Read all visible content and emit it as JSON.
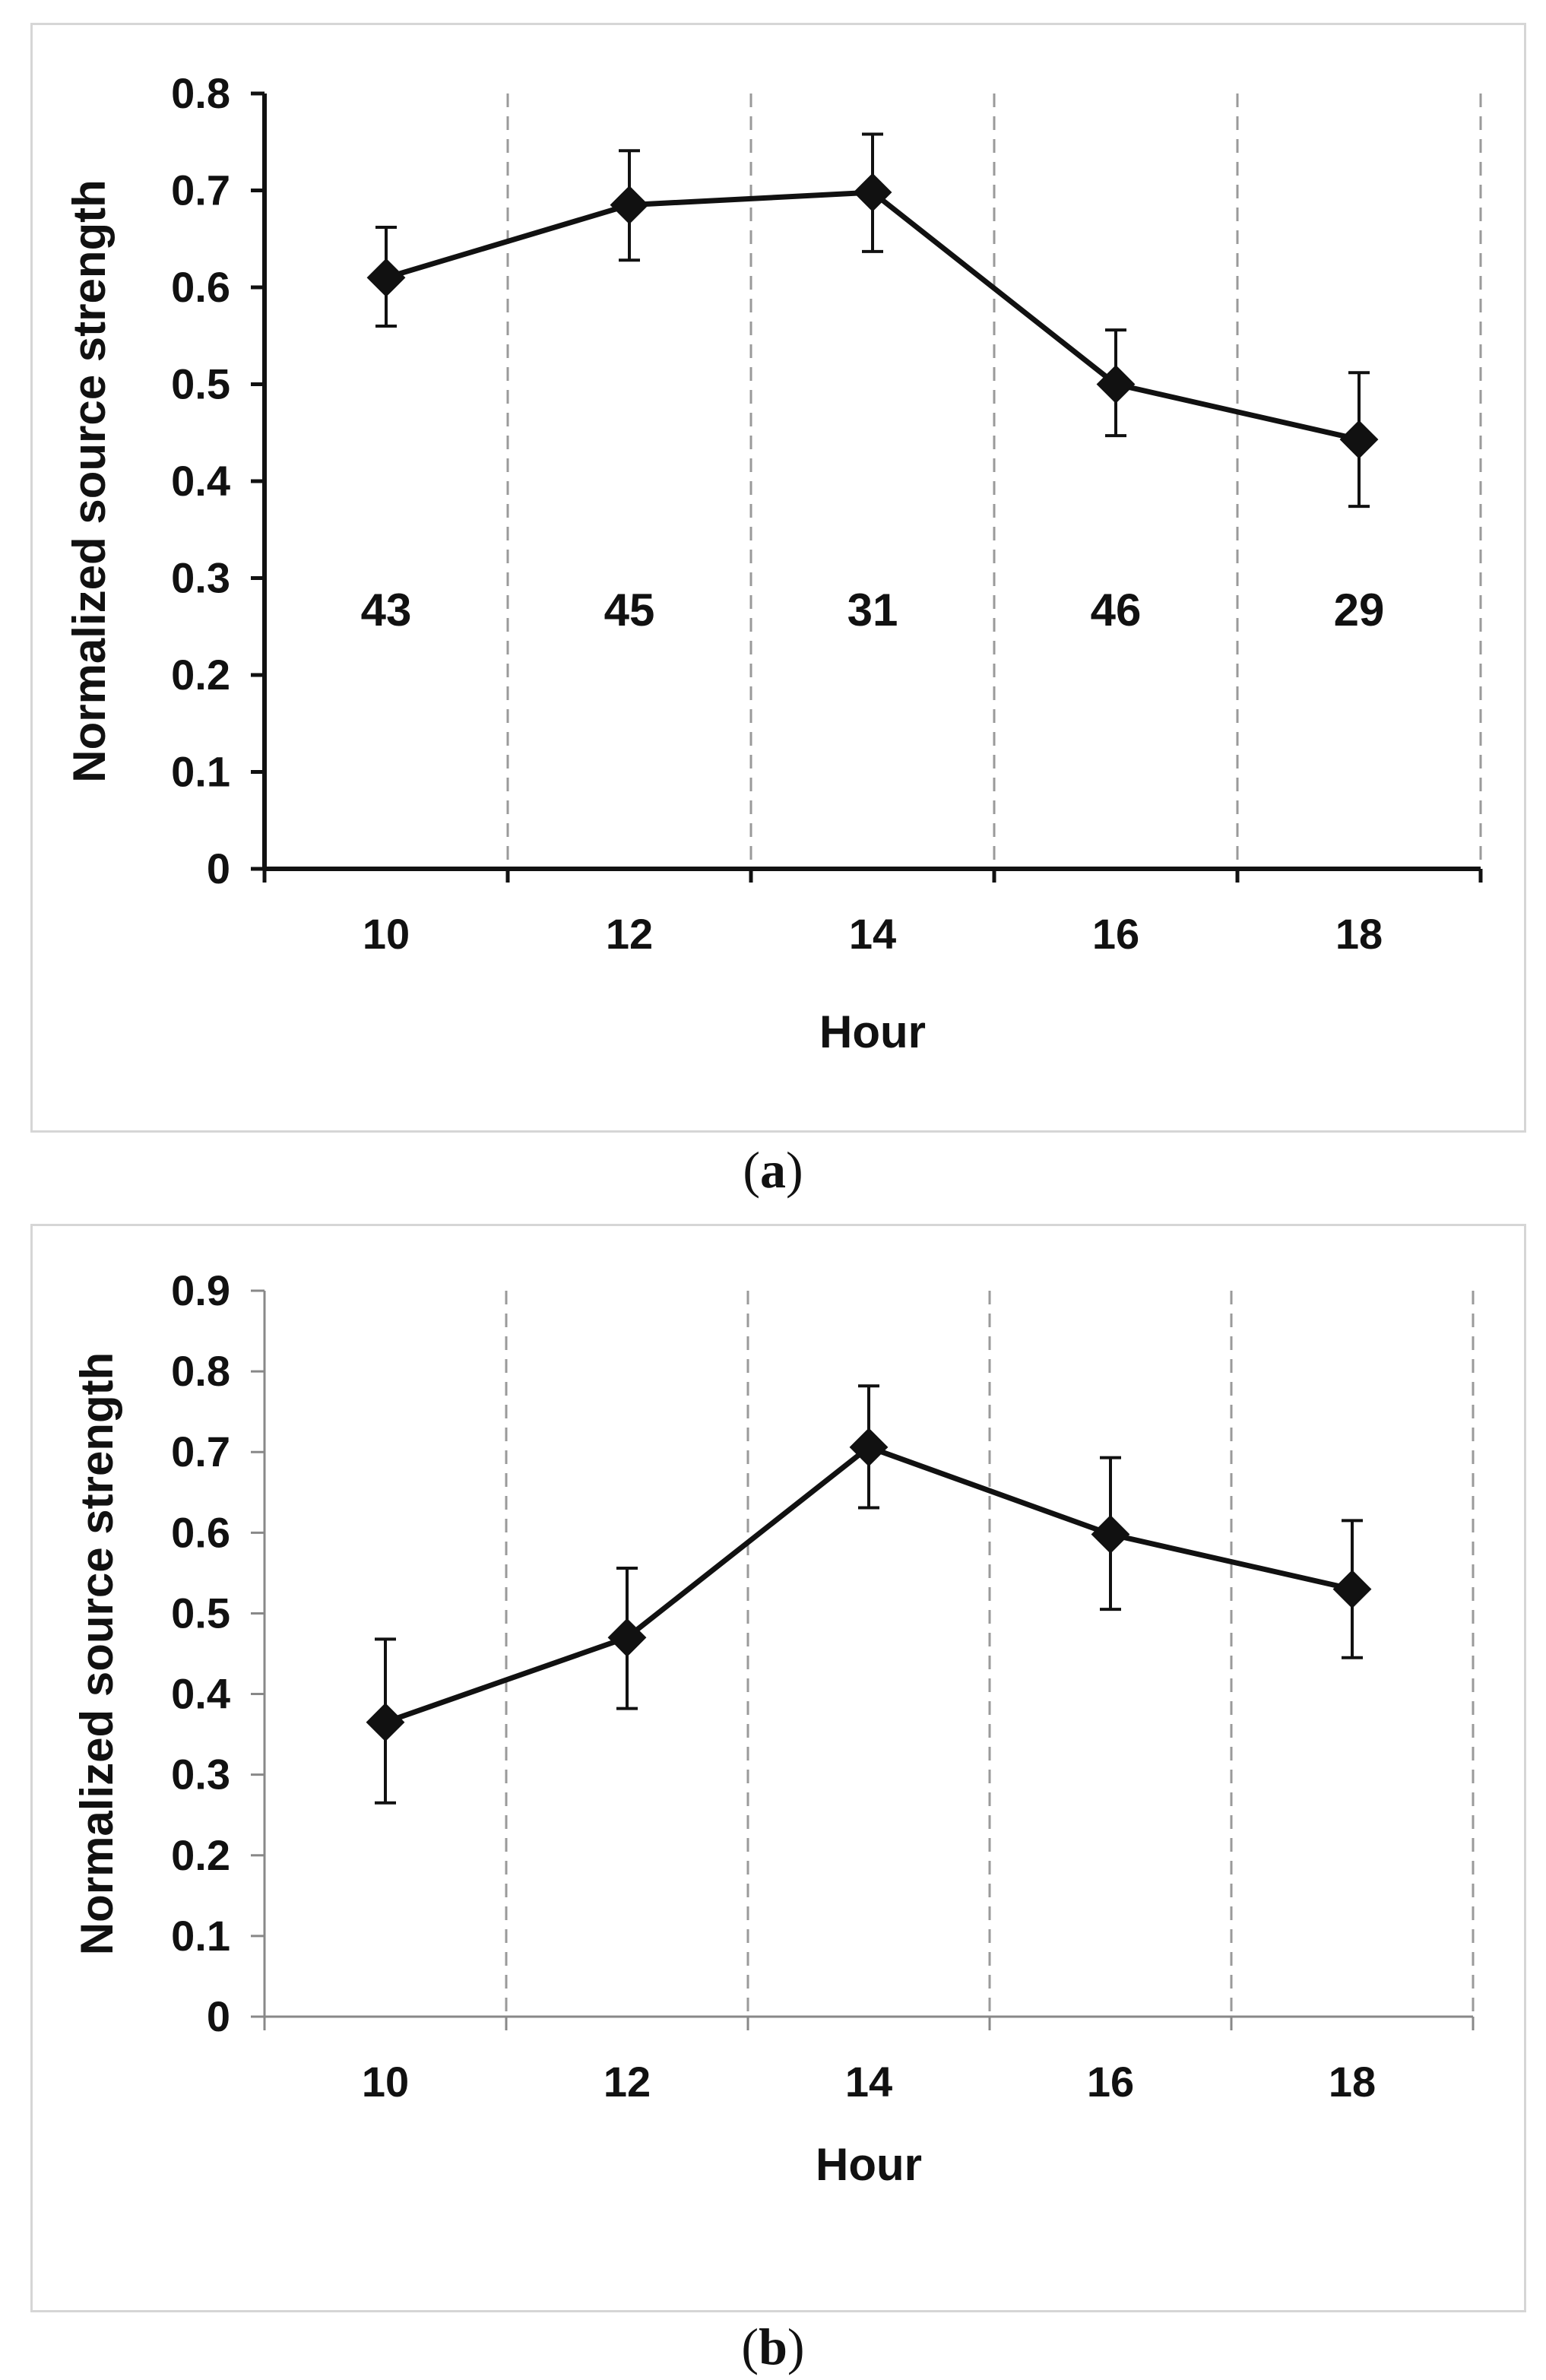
{
  "chart_data": [
    {
      "id": "a",
      "type": "line",
      "caption_open": "(",
      "caption_letter": "a",
      "caption_close": ")",
      "xlabel": "Hour",
      "ylabel": "Normalized source strength",
      "ylim": [
        0,
        0.8
      ],
      "yticks": [
        "0",
        "0.1",
        "0.2",
        "0.3",
        "0.4",
        "0.5",
        "0.6",
        "0.7",
        "0.8"
      ],
      "categories": [
        "10",
        "12",
        "14",
        "16",
        "18"
      ],
      "values": [
        0.61,
        0.685,
        0.698,
        0.5,
        0.443
      ],
      "error_low": [
        0.56,
        0.628,
        0.637,
        0.447,
        0.374
      ],
      "error_high": [
        0.662,
        0.741,
        0.758,
        0.556,
        0.512
      ],
      "counts": [
        "43",
        "45",
        "31",
        "46",
        "29"
      ],
      "marker": "diamond",
      "grid": "vertical dashed",
      "line_color": "#111111",
      "grid_color": "#9a9a9a"
    },
    {
      "id": "b",
      "type": "line",
      "caption_open": "(",
      "caption_letter": "b",
      "caption_close": ")",
      "xlabel": "Hour",
      "ylabel": "Normalized source strength",
      "ylim": [
        0,
        0.9
      ],
      "yticks": [
        "0",
        "0.1",
        "0.2",
        "0.3",
        "0.4",
        "0.5",
        "0.6",
        "0.7",
        "0.8",
        "0.9"
      ],
      "categories": [
        "10",
        "12",
        "14",
        "16",
        "18"
      ],
      "values": [
        0.365,
        0.47,
        0.706,
        0.598,
        0.53
      ],
      "error_low": [
        0.265,
        0.382,
        0.631,
        0.505,
        0.445
      ],
      "error_high": [
        0.468,
        0.556,
        0.782,
        0.693,
        0.615
      ],
      "counts": [],
      "marker": "diamond",
      "grid": "vertical dashed",
      "line_color": "#111111",
      "grid_color": "#9a9a9a"
    }
  ]
}
